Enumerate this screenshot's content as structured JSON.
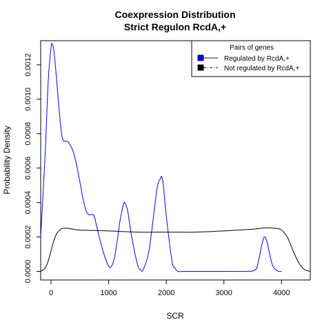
{
  "chart_data": {
    "type": "line",
    "title": "Coexpression Distribution",
    "subtitle": "Strict Regulon RcdA,+",
    "xlabel": "SCR",
    "ylabel": "Probability Density",
    "xlim": [
      -180,
      4500
    ],
    "ylim": [
      -5e-05,
      0.00134
    ],
    "x_ticks": [
      0,
      1000,
      2000,
      3000,
      4000
    ],
    "x_tick_labels": [
      "0",
      "1000",
      "2000",
      "3000",
      "4000"
    ],
    "y_ticks": [
      0.0,
      0.0002,
      0.0004,
      0.0006,
      0.0008,
      0.001,
      0.0012
    ],
    "y_tick_labels": [
      "0.0000",
      "0.0002",
      "0.0004",
      "0.0006",
      "0.0008",
      "0.0010",
      "0.0012"
    ],
    "grid": false,
    "legend": {
      "title": "Pairs of genes",
      "placement": "top-right",
      "entries": [
        "Regulated by  RcdA,+",
        "Not regulated by  RcdA,+"
      ]
    },
    "series": [
      {
        "color": "#0000ff",
        "x": [
          -180,
          -100,
          -50,
          0,
          20,
          50,
          100,
          150,
          200,
          300,
          400,
          500,
          550,
          600,
          650,
          700,
          750,
          800,
          900,
          1000,
          1050,
          1100,
          1150,
          1200,
          1250,
          1280,
          1330,
          1400,
          1500,
          1550,
          1600,
          1700,
          1800,
          1850,
          1900,
          1920,
          1950,
          2000,
          2100,
          2150,
          2200,
          2300,
          2500,
          3000,
          3400,
          3550,
          3600,
          3650,
          3700,
          3750,
          3800,
          3850,
          3900,
          3950,
          4000
        ],
        "y": [
          0.0002,
          0.0007,
          0.0011,
          0.0013,
          0.00132,
          0.00128,
          0.0011,
          0.0009,
          0.00077,
          0.00075,
          0.00068,
          0.00052,
          0.00043,
          0.00036,
          0.00033,
          0.00033,
          0.00032,
          0.00025,
          0.00012,
          3e-05,
          3e-05,
          8e-05,
          0.00018,
          0.0003,
          0.00038,
          0.0004,
          0.00035,
          0.0002,
          4e-05,
          1e-05,
          1e-05,
          0.00012,
          0.00038,
          0.0005,
          0.00054,
          0.00055,
          0.0005,
          0.00032,
          6e-05,
          2e-05,
          0.0,
          0.0,
          0.0,
          0.0,
          0.0,
          1e-05,
          6e-05,
          0.00014,
          0.0002,
          0.00017,
          9e-05,
          3e-05,
          1e-05,
          0.0,
          0.0
        ]
      },
      {
        "color": "#000000",
        "x": [
          -180,
          -100,
          -50,
          0,
          50,
          100,
          150,
          200,
          300,
          500,
          1000,
          1500,
          2000,
          2500,
          3000,
          3500,
          3700,
          3900,
          4000,
          4100,
          4200,
          4300,
          4400,
          4500
        ],
        "y": [
          0.0,
          2e-05,
          6e-05,
          0.00012,
          0.00018,
          0.00022,
          0.00024,
          0.00025,
          0.00025,
          0.00024,
          0.000235,
          0.000228,
          0.000228,
          0.000228,
          0.000235,
          0.000245,
          0.000252,
          0.00025,
          0.00024,
          0.0002,
          0.00012,
          5e-05,
          1e-05,
          0.0
        ]
      }
    ]
  }
}
